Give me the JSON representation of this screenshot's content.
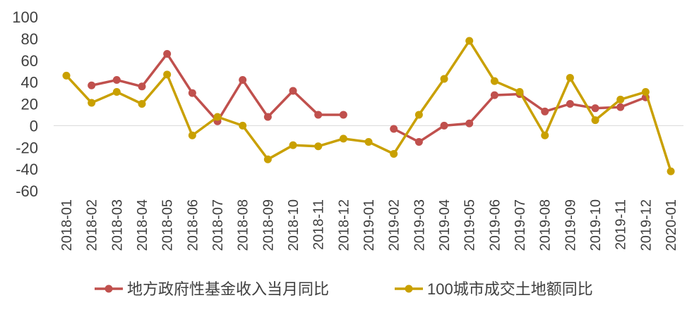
{
  "chart_data": {
    "type": "line",
    "categories": [
      "2018-01",
      "2018-02",
      "2018-03",
      "2018-04",
      "2018-05",
      "2018-06",
      "2018-07",
      "2018-08",
      "2018-09",
      "2018-10",
      "2018-11",
      "2018-12",
      "2019-01",
      "2019-02",
      "2019-03",
      "2019-04",
      "2019-05",
      "2019-06",
      "2019-07",
      "2019-08",
      "2019-09",
      "2019-10",
      "2019-11",
      "2019-12",
      "2020-01"
    ],
    "series": [
      {
        "name": "地方政府性基金收入当月同比",
        "color": "#c0504d",
        "values": [
          null,
          37,
          42,
          36,
          66,
          30,
          4,
          42,
          8,
          32,
          10,
          10,
          null,
          -3,
          -15,
          0,
          2,
          28,
          29,
          13,
          20,
          16,
          17,
          26,
          null
        ]
      },
      {
        "name": "100城市成交土地额同比",
        "color": "#c9a000",
        "values": [
          46,
          21,
          31,
          20,
          47,
          -9,
          8,
          0,
          -31,
          -18,
          -19,
          -12,
          -15,
          -26,
          10,
          43,
          78,
          41,
          31,
          -9,
          44,
          5,
          24,
          31,
          -42
        ]
      }
    ],
    "ylim": [
      -60,
      100
    ],
    "yticks": [
      100,
      80,
      60,
      40,
      20,
      0,
      -20,
      -40,
      -60
    ],
    "grid": false,
    "legend": "bottom"
  }
}
